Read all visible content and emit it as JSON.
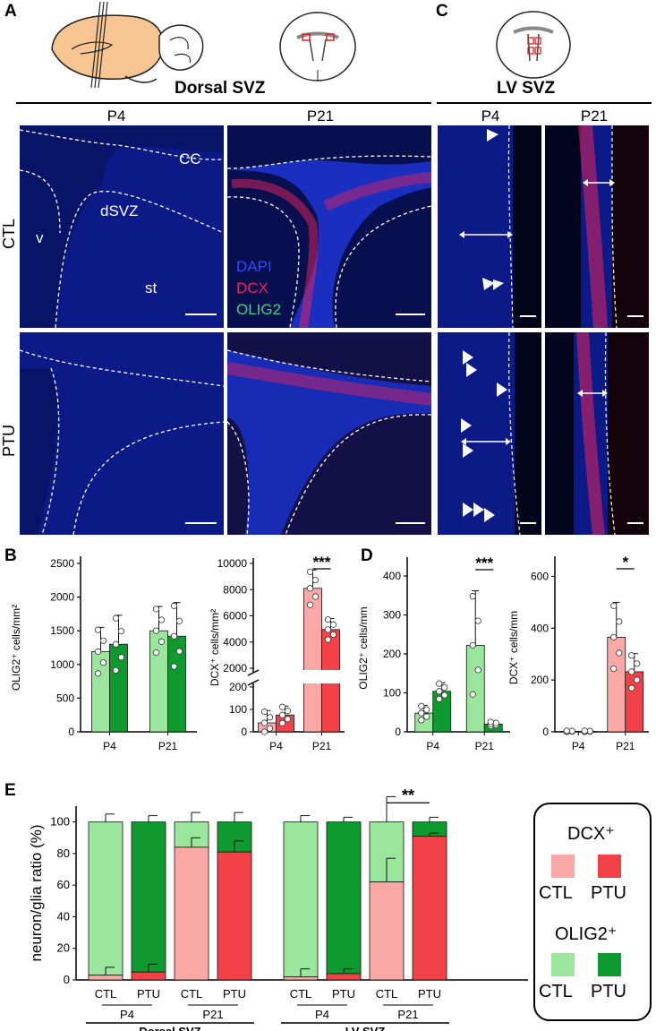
{
  "panel_labels": {
    "a": "A",
    "b": "B",
    "c": "C",
    "d": "D",
    "e": "E"
  },
  "panel_a": {
    "section_title": "Dorsal SVZ",
    "col_headers": [
      "P4",
      "P21"
    ],
    "row_labels": [
      "CTL",
      "PTU"
    ],
    "region_labels": {
      "cc": "CC",
      "dsvz": "dSVZ",
      "v": "v",
      "st": "st"
    },
    "channels": [
      {
        "name": "DAPI",
        "color": "#2a4bff"
      },
      {
        "name": "DCX",
        "color": "#e8235a"
      },
      {
        "name": "OLIG2",
        "color": "#3fd17a"
      }
    ]
  },
  "panel_c": {
    "section_title": "LV SVZ",
    "col_headers": [
      "P4",
      "P21"
    ]
  },
  "chart_data": [
    {
      "id": "B-left",
      "type": "bar",
      "categories": [
        "P4",
        "P21"
      ],
      "series": [
        {
          "values": [
            1190,
            1500
          ]
        },
        {
          "values": [
            1300,
            1420
          ]
        }
      ],
      "errors": [
        [
          360,
          360
        ],
        [
          430,
          500
        ]
      ],
      "ylabel": "OLIG2⁺ cells/mm²",
      "ylim": [
        0,
        2500
      ],
      "yticks": [
        0,
        500,
        1000,
        1500,
        2000,
        2500
      ],
      "series_colors": [
        "#9ae69c",
        "#0e9a2f"
      ]
    },
    {
      "id": "B-right",
      "type": "bar",
      "categories": [
        "P4",
        "P21"
      ],
      "series": [
        {
          "values": [
            40,
            8100
          ]
        },
        {
          "values": [
            75,
            4950
          ]
        }
      ],
      "errors": [
        [
          55,
          1400
        ],
        [
          40,
          850
        ]
      ],
      "ylabel": "DCX⁺ cells/mm²",
      "broken_axis": true,
      "yticks_low": [
        0,
        100,
        200
      ],
      "yticks_high": [
        2000,
        4000,
        6000,
        8000,
        10000
      ],
      "significance": "***",
      "series_colors": [
        "#f9a8a6",
        "#f24147"
      ]
    },
    {
      "id": "D-left",
      "type": "bar",
      "categories": [
        "P4",
        "P21"
      ],
      "series": [
        {
          "values": [
            48,
            222
          ]
        },
        {
          "values": [
            104,
            20
          ]
        }
      ],
      "errors": [
        [
          20,
          140
        ],
        [
          22,
          6
        ]
      ],
      "ylabel": "OLIG2⁺ cells/mm",
      "ylim": [
        0,
        430
      ],
      "yticks": [
        0,
        100,
        200,
        300,
        400
      ],
      "significance": "***",
      "series_colors": [
        "#9ae69c",
        "#0e9a2f"
      ]
    },
    {
      "id": "D-right",
      "type": "bar",
      "categories": [
        "P4",
        "P21"
      ],
      "series": [
        {
          "values": [
            2,
            365
          ]
        },
        {
          "values": [
            2,
            232
          ]
        }
      ],
      "errors": [
        [
          2,
          135
        ],
        [
          2,
          70
        ]
      ],
      "ylabel": "DCX⁺ cells/mm",
      "ylim": [
        0,
        650
      ],
      "yticks": [
        0,
        200,
        400,
        600
      ],
      "significance": "*",
      "series_colors": [
        "#f9a8a6",
        "#f24147"
      ]
    },
    {
      "id": "E",
      "type": "bar",
      "stacked": true,
      "categories": [
        "CTL",
        "PTU",
        "CTL",
        "PTU",
        "CTL",
        "PTU",
        "CTL",
        "PTU"
      ],
      "groups": [
        {
          "label": "P4",
          "region": "Dorsal SVZ"
        },
        {
          "label": "P21",
          "region": "Dorsal SVZ"
        },
        {
          "label": "P4",
          "region": "LV-SVZ"
        },
        {
          "label": "P21",
          "region": "LV-SVZ"
        }
      ],
      "region_labels": [
        "Dorsal SVZ",
        "LV-SVZ"
      ],
      "dcx": [
        3,
        5,
        84,
        81,
        2,
        4,
        62,
        91
      ],
      "dcx_err": [
        5,
        5,
        6,
        7,
        5,
        3,
        15,
        2
      ],
      "total_err": [
        5,
        4,
        6,
        6,
        4,
        3,
        16,
        3
      ],
      "ylabel": "neuron/glia ratio (%)",
      "ylim": [
        0,
        110
      ],
      "yticks": [
        0,
        20,
        40,
        60,
        80,
        100
      ],
      "significance": "**"
    }
  ],
  "legend": {
    "dcx_title": "DCX⁺",
    "olig_title": "OLIG2⁺",
    "ctl": "CTL",
    "ptu": "PTU",
    "colors": {
      "dcx_ctl": "#f9a8a6",
      "dcx_ptu": "#f24147",
      "olig_ctl": "#9ae69c",
      "olig_ptu": "#0e9a2f"
    }
  }
}
